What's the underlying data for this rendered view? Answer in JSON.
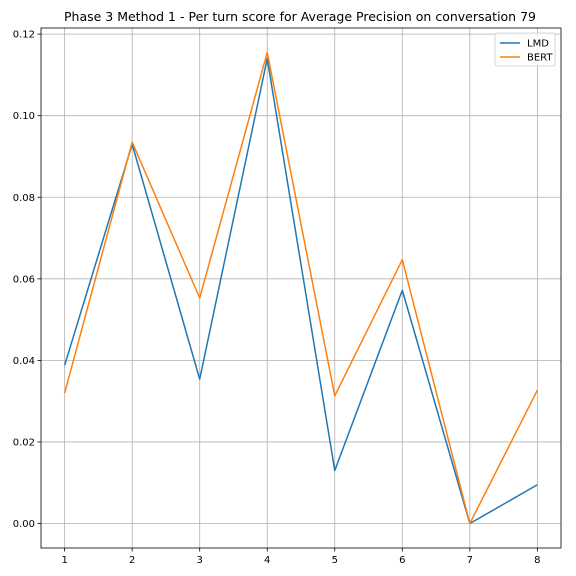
{
  "chart_data": {
    "type": "line",
    "title": "Phase 3 Method 1 - Per turn score for Average Precision on conversation 79",
    "xlabel": "",
    "ylabel": "",
    "x": [
      1,
      2,
      3,
      4,
      5,
      6,
      7,
      8
    ],
    "x_ticks": [
      "1",
      "2",
      "3",
      "4",
      "5",
      "6",
      "7",
      "8"
    ],
    "y_ticks": [
      "0.00",
      "0.02",
      "0.04",
      "0.06",
      "0.08",
      "0.10",
      "0.12"
    ],
    "xlim": [
      0.65,
      8.35
    ],
    "ylim": [
      -0.006,
      0.1215
    ],
    "grid": true,
    "legend_position": "upper right",
    "series": [
      {
        "name": "LMD",
        "color": "#1f77b4",
        "values": [
          0.0388,
          0.093,
          0.0354,
          0.114,
          0.013,
          0.0572,
          0.0,
          0.0095
        ]
      },
      {
        "name": "BERT",
        "color": "#ff7f0e",
        "values": [
          0.032,
          0.0935,
          0.0553,
          0.1155,
          0.0313,
          0.0647,
          0.0,
          0.0327
        ]
      }
    ]
  }
}
